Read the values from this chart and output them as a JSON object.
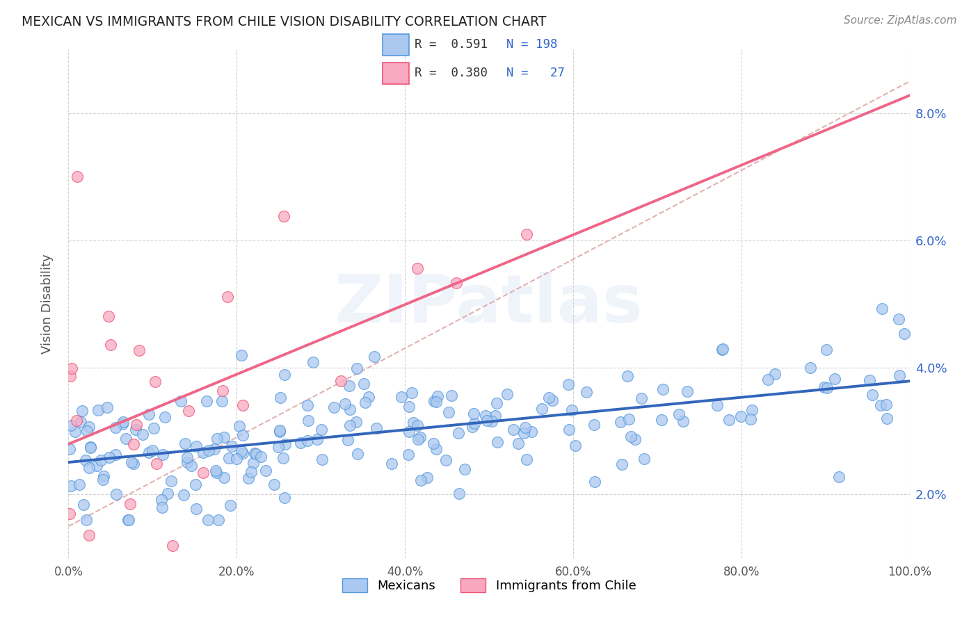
{
  "title": "MEXICAN VS IMMIGRANTS FROM CHILE VISION DISABILITY CORRELATION CHART",
  "source": "Source: ZipAtlas.com",
  "ylabel": "Vision Disability",
  "xlabel": "",
  "legend_mexicans": "Mexicans",
  "legend_chile": "Immigrants from Chile",
  "r_mexicans": 0.591,
  "n_mexicans": 198,
  "r_chile": 0.38,
  "n_chile": 27,
  "xlim": [
    0.0,
    1.0
  ],
  "ylim": [
    0.01,
    0.09
  ],
  "xtick_vals": [
    0.0,
    0.2,
    0.4,
    0.6,
    0.8,
    1.0
  ],
  "xtick_labels": [
    "0.0%",
    "20.0%",
    "40.0%",
    "60.0%",
    "80.0%",
    "100.0%"
  ],
  "ytick_vals": [
    0.02,
    0.04,
    0.06,
    0.08
  ],
  "ytick_labels": [
    "2.0%",
    "4.0%",
    "6.0%",
    "8.0%"
  ],
  "scatter_color_mexicans": "#aac8f0",
  "scatter_color_chile": "#f8a8c0",
  "edge_color_mexicans": "#5599dd",
  "edge_color_chile": "#ee5577",
  "line_color_mexicans": "#3366bb",
  "line_color_chile": "#ee6688",
  "diagonal_color": "#ddaaaa",
  "diagonal_style": "--",
  "background_color": "#ffffff",
  "grid_color": "#cccccc",
  "grid_style": "--",
  "title_color": "#222222",
  "source_color": "#888888",
  "legend_text_color": "#3366cc",
  "ylabel_color": "#555555",
  "ytick_label_color": "#3366cc",
  "seed_mex": 42,
  "seed_chile": 99
}
